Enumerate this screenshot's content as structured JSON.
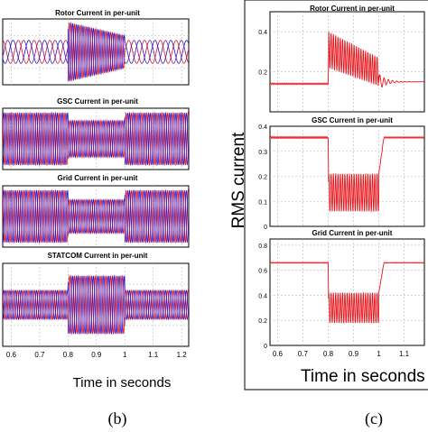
{
  "figure": {
    "panel_b_label": "(b)",
    "panel_c_label": "(c)",
    "xlabel_b": "Time in seconds",
    "xlabel_c": "Time in seconds",
    "ylabel_c": "RMS current"
  },
  "colors": {
    "phase_a": "#e8141c",
    "phase_b": "#1a1ad6",
    "phase_c": "#7a1a8a",
    "rms": "#e8141c",
    "grid": "#b8b8b8",
    "axis": "#000000"
  },
  "chart_data": [
    {
      "type": "line",
      "panel": "b",
      "title": "Rotor Current in per-unit",
      "x_ticks": [],
      "y_ticks": [],
      "series": [
        {
          "component": "phase-a",
          "pre_amplitude": 0.35,
          "event_amplitude": 0.9
        },
        {
          "component": "phase-b",
          "pre_amplitude": 0.35,
          "event_amplitude": 0.9
        }
      ]
    },
    {
      "type": "line",
      "panel": "b",
      "title": "GSC Current in per-unit",
      "x_ticks": [],
      "y_ticks": [],
      "series": [
        {
          "component": "phase-a",
          "pre_amplitude": 0.85,
          "event_amplitude": 0.6
        },
        {
          "component": "phase-b",
          "pre_amplitude": 0.85,
          "event_amplitude": 0.6
        }
      ]
    },
    {
      "type": "line",
      "panel": "b",
      "title": "Grid Current in per-unit",
      "x_ticks": [],
      "y_ticks": [],
      "series": [
        {
          "component": "phase-a",
          "pre_amplitude": 0.85,
          "event_amplitude": 0.55
        },
        {
          "component": "phase-b",
          "pre_amplitude": 0.85,
          "event_amplitude": 0.55
        }
      ]
    },
    {
      "type": "line",
      "panel": "b",
      "title": "STATCOM Current in per-unit",
      "x_ticks": [
        "0.6",
        "0.7",
        "0.8",
        "0.9",
        "1",
        "1.1",
        "1.2"
      ],
      "x_tick_values": [
        0.6,
        0.7,
        0.8,
        0.9,
        1.0,
        1.1,
        1.2
      ],
      "y_ticks": [],
      "series": [
        {
          "component": "phase-a",
          "pre_amplitude": 0.35,
          "event_amplitude": 0.7
        },
        {
          "component": "phase-b",
          "pre_amplitude": 0.35,
          "event_amplitude": 0.7
        }
      ]
    },
    {
      "type": "line",
      "panel": "c",
      "title": "Rotor Current in per-unit",
      "ylim": [
        0,
        0.5
      ],
      "y_ticks": [
        "0.2",
        "0.4"
      ],
      "y_tick_values": [
        0.2,
        0.4
      ],
      "x_ticks": [],
      "series": [
        {
          "component": "rms",
          "pre_value": 0.14,
          "event_start_center": 0.31,
          "event_end_center": 0.2,
          "event_start_swing": 0.09,
          "event_end_swing": 0.07,
          "post_value": 0.15
        }
      ]
    },
    {
      "type": "line",
      "panel": "c",
      "title": "GSC Current in per-unit",
      "ylim": [
        0,
        0.4
      ],
      "y_ticks": [
        "0",
        "0.1",
        "0.2",
        "0.3",
        "0.4"
      ],
      "y_tick_values": [
        0,
        0.1,
        0.2,
        0.3,
        0.4
      ],
      "x_ticks": [],
      "series": [
        {
          "component": "rms",
          "pre_value": 0.355,
          "event_center": 0.135,
          "event_swing": 0.075,
          "post_value": 0.355
        }
      ]
    },
    {
      "type": "line",
      "panel": "c",
      "title": "Grid Current in per-unit",
      "ylim": [
        0,
        0.85
      ],
      "y_ticks": [
        "0",
        "0.2",
        "0.4",
        "0.6",
        "0.8"
      ],
      "y_tick_values": [
        0,
        0.2,
        0.4,
        0.6,
        0.8
      ],
      "x_ticks": [
        "0.6",
        "0.7",
        "0.8",
        "0.9",
        "1",
        "1.1"
      ],
      "x_tick_values": [
        0.6,
        0.7,
        0.8,
        0.9,
        1.0,
        1.1
      ],
      "series": [
        {
          "component": "rms",
          "pre_value": 0.66,
          "event_center": 0.3,
          "event_swing": 0.12,
          "post_value": 0.66
        }
      ]
    }
  ]
}
